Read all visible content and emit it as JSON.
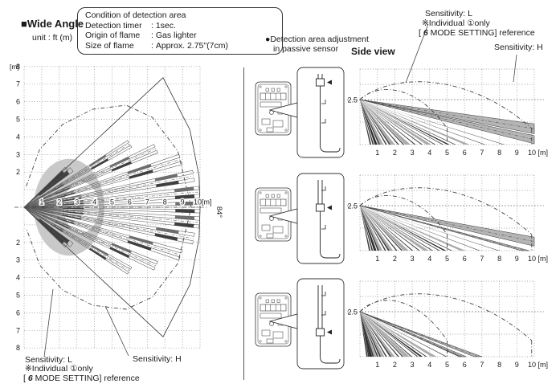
{
  "header": {
    "section_marker": "■",
    "title": "Wide Angle",
    "unit_note": "unit : ft (m)",
    "condition_box": {
      "title": "Condition of detection area",
      "rows": [
        {
          "label": "Detection timer",
          "value": "1sec."
        },
        {
          "label": "Origin of flame",
          "value": "Gas lighter"
        },
        {
          "label": "Size of flame",
          "value": "Approx. 2.75\"(7cm)"
        }
      ]
    }
  },
  "adjustment": {
    "heading_bullet": "●",
    "heading_line1": "Detection area adjustment",
    "heading_line2": "in passive sensor",
    "positions": [
      "top",
      "middle",
      "bottom"
    ]
  },
  "side_view": {
    "title": "Side view"
  },
  "annotations": {
    "sensitivity_l": "Sensitivity: L",
    "individual_note": "※Individual ①only",
    "mode_prefix": "[ ",
    "mode_number": "6",
    "mode_suffix": " MODE SETTING] reference",
    "sensitivity_h": "Sensitivity: H"
  },
  "colors": {
    "ink": "#1a1a1a",
    "grid": "#8a8a8a",
    "beam_dark": "#3f3f3f",
    "beam_mid": "#6e6e6e",
    "band_gray": "#b5b5b5",
    "near_zone_gray": "#c9c9c9"
  },
  "chart_data": [
    {
      "id": "top_view",
      "type": "beam-fan-top",
      "title": "Wide Angle",
      "x_ticks": [
        1,
        2,
        3,
        4,
        5,
        6,
        7,
        8,
        9
      ],
      "x_unit_label": "10[m]",
      "y_axis_unit": "[m]",
      "y_ticks_up": [
        8,
        7,
        6,
        5,
        4,
        3,
        2
      ],
      "y_ticks_down": [
        2,
        3,
        4,
        5,
        6,
        7,
        8
      ],
      "fan_angle_label": "84°",
      "half_angle_deg": 42,
      "range_m": 10,
      "beams": [
        {
          "angle": 0,
          "len": 10,
          "far": [
            8.6,
            9.7
          ],
          "near": [
            2.2,
            3.4
          ]
        },
        {
          "angle": 5,
          "len": 10,
          "far": [
            8.6,
            9.7
          ],
          "near": [
            2.2,
            3.4
          ]
        },
        {
          "angle": -5,
          "len": 10,
          "far": [
            8.6,
            9.7
          ],
          "near": [
            2.2,
            3.4
          ]
        },
        {
          "angle": 10.5,
          "len": 9.8,
          "far": [
            7.6,
            8.9
          ],
          "near": [
            2.2,
            3.3
          ]
        },
        {
          "angle": -10.5,
          "len": 9.8,
          "far": [
            7.6,
            8.9
          ],
          "near": [
            2.2,
            3.3
          ]
        },
        {
          "angle": 17,
          "len": 9.3,
          "far": [
            6.2,
            7.6
          ],
          "near": [
            2.0,
            3.0
          ]
        },
        {
          "angle": -17,
          "len": 9.3,
          "far": [
            6.2,
            7.6
          ],
          "near": [
            2.0,
            3.0
          ]
        },
        {
          "angle": 24,
          "len": 8.2,
          "far": [
            5.4,
            6.6
          ],
          "near": [
            1.9,
            2.8
          ]
        },
        {
          "angle": -24,
          "len": 8.2,
          "far": [
            5.4,
            6.6
          ],
          "near": [
            1.9,
            2.8
          ]
        },
        {
          "angle": 31,
          "len": 7.0,
          "far": [
            4.4,
            5.5
          ],
          "near": [
            1.8,
            2.6
          ]
        },
        {
          "angle": -31,
          "len": 7.0,
          "far": [
            4.4,
            5.5
          ],
          "near": [
            1.8,
            2.6
          ]
        }
      ],
      "short_beams": [
        {
          "angle": 38.5,
          "seg": [
            1.1,
            3.2
          ]
        },
        {
          "angle": -38.5,
          "seg": [
            1.1,
            3.2
          ]
        },
        {
          "angle": 42,
          "seg": [
            1.0,
            3.0
          ]
        },
        {
          "angle": -42,
          "seg": [
            1.0,
            3.0
          ]
        }
      ],
      "near_zone": {
        "outer": {
          "cx": 2.55,
          "rx": 2.0,
          "ry": 2.75
        },
        "inner_hole": {
          "cx": 3.25,
          "rx": 1.0,
          "ry": 1.45
        }
      },
      "l_boundary_polar": [
        [
          84,
          1.2
        ],
        [
          75,
          3.4
        ],
        [
          65,
          5.2
        ],
        [
          55,
          6.8
        ],
        [
          45,
          8.2
        ],
        [
          35,
          8.9
        ],
        [
          20,
          9.3
        ],
        [
          0,
          9.5
        ]
      ],
      "h_boundary_polar": [
        [
          43,
          10.8
        ],
        [
          25,
          10.4
        ],
        [
          10,
          10.1
        ],
        [
          0,
          10.0
        ]
      ]
    },
    {
      "id": "side_view_far",
      "type": "beam-fan-side",
      "slider_position": "top",
      "mount_height_label": "2.5",
      "mount_height_m": 2.5,
      "x_ticks": [
        1,
        2,
        3,
        4,
        5,
        6,
        7,
        8,
        9
      ],
      "x_unit_label": "10 [m]",
      "range_m": 10,
      "bands": [
        {
          "end": "wall",
          "h1": 1.15,
          "h2": 0.6
        },
        {
          "end": "wall",
          "h1": 0.5,
          "h2": 0.05
        }
      ],
      "gray_beams": [
        6.3,
        4.1,
        2.9,
        2.0,
        1.35
      ],
      "dark_beams": [
        8.3,
        7.2,
        5.5,
        4.8,
        4.35,
        3.6,
        3.2,
        2.55,
        2.25,
        1.75,
        1.55,
        1.15,
        0.95,
        0.8,
        0.65
      ],
      "thick_beams": [
        5.15,
        1.0
      ],
      "arcs": {
        "inner_end_x": 5.0,
        "inner_peak": [
          2.55,
          3.4
        ],
        "outer_end_x": 9.85,
        "outer_peak": [
          6.2,
          4.0
        ]
      }
    },
    {
      "id": "side_view_middle",
      "type": "beam-fan-side",
      "slider_position": "middle",
      "mount_height_label": "2.5",
      "mount_height_m": 2.5,
      "x_ticks": [
        1,
        2,
        3,
        4,
        5,
        6,
        7,
        8,
        9
      ],
      "x_unit_label": "10 [m]",
      "range_m": 10,
      "bands": [
        {
          "end": "wall",
          "h1": 0.75,
          "h2": 0.25
        },
        {
          "end": "floor",
          "d": 9.7,
          "w": 0.45
        }
      ],
      "gray_beams": [
        6.05,
        3.95,
        2.8,
        1.9,
        1.3
      ],
      "dark_beams": [
        8.0,
        6.9,
        5.3,
        4.6,
        4.2,
        3.45,
        3.05,
        2.45,
        2.15,
        1.7,
        1.5,
        1.1,
        0.9,
        0.75,
        0.6
      ],
      "thick_beams": [
        4.95,
        0.95
      ],
      "arcs": {
        "inner_end_x": 5.0,
        "inner_peak": [
          2.55,
          3.4
        ],
        "outer_end_x": 9.85,
        "outer_peak": [
          6.2,
          4.0
        ]
      }
    },
    {
      "id": "side_view_near",
      "type": "beam-fan-side",
      "slider_position": "bottom",
      "mount_height_label": "2.5",
      "mount_height_m": 2.5,
      "x_ticks": [
        1,
        2,
        3,
        4,
        5,
        6,
        7,
        8,
        9
      ],
      "x_unit_label": "10 [m]",
      "range_m": 10,
      "bands": [
        {
          "end": "floor",
          "d": 7.0,
          "w": 0.45
        },
        {
          "end": "floor",
          "d": 6.1,
          "w": 0.4
        }
      ],
      "gray_beams": [
        4.4,
        2.85,
        2.0,
        1.4,
        0.95
      ],
      "dark_beams": [
        5.8,
        5.0,
        3.85,
        3.35,
        3.0,
        2.5,
        2.25,
        1.8,
        1.55,
        1.2,
        1.05,
        0.8,
        0.65,
        0.55,
        0.45
      ],
      "thick_beams": [
        3.6,
        0.7
      ],
      "arcs": {
        "inner_end_x": 5.0,
        "inner_peak": [
          2.8,
          3.5
        ],
        "outer_end_x": 9.85,
        "outer_peak": [
          6.2,
          4.0
        ]
      }
    }
  ]
}
